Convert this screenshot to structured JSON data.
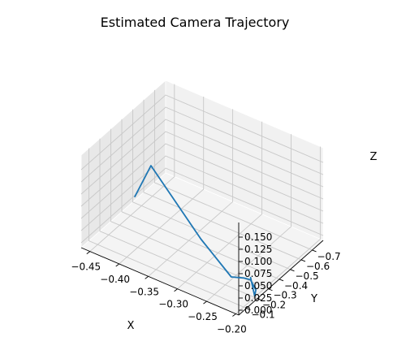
{
  "colors": {
    "series": "#1f77b4"
  },
  "chart_data": {
    "type": "line",
    "title": "Estimated Camera Trajectory",
    "xlabel": "X",
    "ylabel": "Y",
    "zlabel": "Z",
    "grid": true,
    "xlim": [
      -0.465,
      -0.195
    ],
    "ylim": [
      -0.8,
      -0.03
    ],
    "zlim": [
      -0.01,
      0.18
    ],
    "xticks": [
      -0.45,
      -0.4,
      -0.35,
      -0.3,
      -0.25,
      -0.2
    ],
    "xtick_labels": [
      "−0.45",
      "−0.40",
      "−0.35",
      "−0.30",
      "−0.25",
      "−0.20"
    ],
    "yticks": [
      -0.7,
      -0.6,
      -0.5,
      -0.4,
      -0.3,
      -0.2,
      -0.1
    ],
    "ytick_labels": [
      "−0.7",
      "−0.6",
      "−0.5",
      "−0.4",
      "−0.3",
      "−0.2",
      "−0.1"
    ],
    "zticks": [
      0.0,
      0.025,
      0.05,
      0.075,
      0.1,
      0.125,
      0.15
    ],
    "ztick_labels": [
      "0.000",
      "0.025",
      "0.050",
      "0.075",
      "0.100",
      "0.125",
      "0.150"
    ],
    "series": [
      {
        "x": [
          -0.4594,
          -0.3794,
          -0.2942,
          -0.2399,
          -0.2186,
          -0.206,
          -0.1957,
          -0.1983,
          -0.2036
        ],
        "y": [
          -0.4894,
          -0.2107,
          -0.2133,
          -0.2011,
          -0.2004,
          -0.1958,
          -0.1897,
          -0.1926,
          -0.1839
        ],
        "z": [
          0.0062,
          0.1662,
          0.0585,
          0.0113,
          0.0202,
          0.0238,
          0.0097,
          -0.0051,
          0.0321
        ]
      }
    ]
  }
}
